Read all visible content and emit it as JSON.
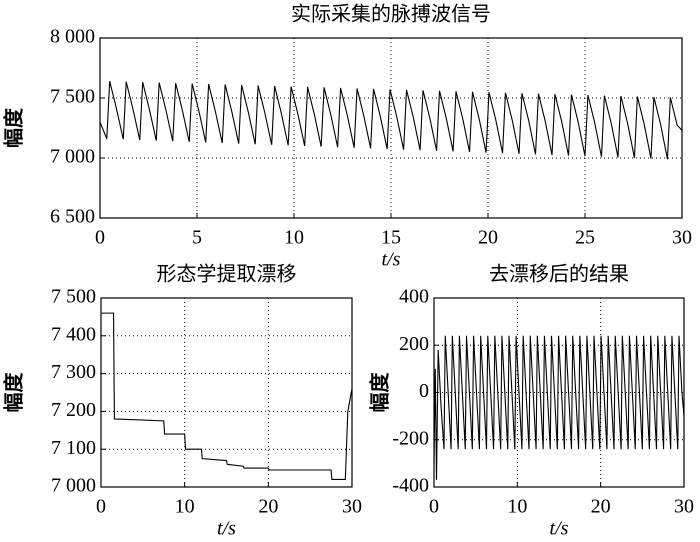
{
  "chart_data": [
    {
      "type": "line",
      "title": "实际采集的脉搏波信号",
      "xlabel": "t/s",
      "ylabel": "幅度",
      "color": "#000000",
      "grid": true,
      "xlim": [
        0,
        30
      ],
      "ylim": [
        6500,
        8000
      ],
      "xticks": [
        0,
        5,
        10,
        15,
        20,
        25,
        30
      ],
      "yticks": [
        {
          "value": 6500,
          "label": "6 500"
        },
        {
          "value": 7000,
          "label": "7 000"
        },
        {
          "value": 7500,
          "label": "7 500"
        },
        {
          "value": 8000,
          "label": "8 000"
        }
      ],
      "x": [
        0,
        0.35,
        0.5,
        0.85,
        1.2,
        1.35,
        1.7,
        2.05,
        2.2,
        2.55,
        2.9,
        3.05,
        3.4,
        3.75,
        3.9,
        4.25,
        4.6,
        4.75,
        5.1,
        5.45,
        5.6,
        5.95,
        6.3,
        6.45,
        6.8,
        7.15,
        7.3,
        7.65,
        8.0,
        8.15,
        8.5,
        8.85,
        9.0,
        9.35,
        9.7,
        9.85,
        10.2,
        10.55,
        10.7,
        11.05,
        11.4,
        11.55,
        11.9,
        12.25,
        12.4,
        12.75,
        13.1,
        13.25,
        13.6,
        13.95,
        14.1,
        14.45,
        14.8,
        14.95,
        15.3,
        15.65,
        15.8,
        16.15,
        16.5,
        16.65,
        17.0,
        17.35,
        17.5,
        17.85,
        18.2,
        18.35,
        18.7,
        19.05,
        19.2,
        19.55,
        19.9,
        20.05,
        20.4,
        20.75,
        20.9,
        21.25,
        21.6,
        21.75,
        22.1,
        22.45,
        22.6,
        22.95,
        23.3,
        23.45,
        23.8,
        24.15,
        24.3,
        24.65,
        25.0,
        25.15,
        25.5,
        25.85,
        26.0,
        26.35,
        26.7,
        26.85,
        27.2,
        27.55,
        27.7,
        28.05,
        28.4,
        28.55,
        28.9,
        29.25,
        29.4,
        29.75,
        30
      ],
      "values": [
        7300,
        7160,
        7640,
        7410,
        7156,
        7636,
        7406,
        7150,
        7632,
        7402,
        7145,
        7628,
        7398,
        7140,
        7624,
        7394,
        7135,
        7620,
        7390,
        7130,
        7616,
        7386,
        7125,
        7612,
        7382,
        7120,
        7608,
        7378,
        7115,
        7604,
        7374,
        7110,
        7600,
        7370,
        7105,
        7596,
        7366,
        7100,
        7592,
        7362,
        7095,
        7588,
        7358,
        7090,
        7584,
        7354,
        7085,
        7580,
        7350,
        7080,
        7576,
        7346,
        7075,
        7572,
        7342,
        7070,
        7568,
        7338,
        7065,
        7564,
        7334,
        7060,
        7560,
        7330,
        7055,
        7556,
        7326,
        7050,
        7552,
        7322,
        7045,
        7548,
        7318,
        7040,
        7544,
        7314,
        7035,
        7540,
        7310,
        7030,
        7536,
        7306,
        7025,
        7532,
        7302,
        7020,
        7528,
        7298,
        7015,
        7524,
        7294,
        7010,
        7520,
        7290,
        7005,
        7516,
        7286,
        7000,
        7512,
        7282,
        6995,
        7508,
        7278,
        6990,
        7504,
        7274,
        7230
      ]
    },
    {
      "type": "line",
      "title": "形态学提取漂移",
      "xlabel": "t/s",
      "ylabel": "幅度",
      "color": "#000000",
      "grid": true,
      "xlim": [
        0,
        30
      ],
      "ylim": [
        7000,
        7500
      ],
      "xticks": [
        0,
        10,
        20,
        30
      ],
      "yticks": [
        {
          "value": 7000,
          "label": "7 000"
        },
        {
          "value": 7100,
          "label": "7 100"
        },
        {
          "value": 7200,
          "label": "7 200"
        },
        {
          "value": 7300,
          "label": "7 300"
        },
        {
          "value": 7400,
          "label": "7 400"
        },
        {
          "value": 7500,
          "label": "7 500"
        }
      ],
      "x": [
        0,
        1.5,
        1.6,
        7.5,
        7.6,
        10,
        10.1,
        12,
        12.1,
        15,
        15.1,
        17,
        17.1,
        20,
        20.1,
        27.5,
        27.6,
        29.2,
        29.5,
        30
      ],
      "values": [
        7460,
        7460,
        7180,
        7175,
        7140,
        7140,
        7100,
        7100,
        7075,
        7070,
        7060,
        7055,
        7050,
        7050,
        7045,
        7045,
        7020,
        7020,
        7200,
        7260
      ]
    },
    {
      "type": "line",
      "title": "去漂移后的结果",
      "xlabel": "t/s",
      "ylabel": "幅度",
      "color": "#000000",
      "grid": true,
      "xlim": [
        0,
        30
      ],
      "ylim": [
        -400,
        400
      ],
      "xticks": [
        0,
        10,
        20,
        30
      ],
      "yticks": [
        -400,
        -200,
        0,
        200,
        400
      ],
      "x": [
        0,
        0.15,
        0.3,
        0.5,
        0.85,
        1.2,
        1.35,
        1.7,
        2.05,
        2.2,
        2.55,
        2.9,
        3.05,
        3.4,
        3.75,
        3.9,
        4.25,
        4.6,
        4.75,
        5.1,
        5.45,
        5.6,
        5.95,
        6.3,
        6.45,
        6.8,
        7.15,
        7.3,
        7.65,
        8.0,
        8.15,
        8.5,
        8.85,
        9.0,
        9.35,
        9.7,
        9.85,
        10.2,
        10.55,
        10.7,
        11.05,
        11.4,
        11.55,
        11.9,
        12.25,
        12.4,
        12.75,
        13.1,
        13.25,
        13.6,
        13.95,
        14.1,
        14.45,
        14.8,
        14.95,
        15.3,
        15.65,
        15.8,
        16.15,
        16.5,
        16.65,
        17.0,
        17.35,
        17.5,
        17.85,
        18.2,
        18.35,
        18.7,
        19.05,
        19.2,
        19.55,
        19.9,
        20.05,
        20.4,
        20.75,
        20.9,
        21.25,
        21.6,
        21.75,
        22.1,
        22.45,
        22.6,
        22.95,
        23.3,
        23.45,
        23.8,
        24.15,
        24.3,
        24.65,
        25.0,
        25.15,
        25.5,
        25.85,
        26.0,
        26.35,
        26.7,
        26.85,
        27.2,
        27.55,
        27.7,
        28.05,
        28.4,
        28.55,
        28.9,
        29.25,
        29.4,
        29.75,
        30
      ],
      "values": [
        -300,
        100,
        -370,
        180,
        -60,
        -240,
        240,
        0,
        -240,
        240,
        0,
        -240,
        240,
        0,
        -240,
        240,
        0,
        -240,
        240,
        0,
        -240,
        240,
        0,
        -240,
        240,
        0,
        -240,
        240,
        0,
        -240,
        240,
        0,
        -240,
        240,
        0,
        -240,
        240,
        0,
        -240,
        240,
        0,
        -240,
        240,
        0,
        -240,
        240,
        0,
        -240,
        240,
        0,
        -240,
        240,
        0,
        -240,
        240,
        0,
        -240,
        240,
        0,
        -240,
        240,
        0,
        -240,
        240,
        0,
        -240,
        240,
        0,
        -240,
        240,
        0,
        -240,
        240,
        0,
        -240,
        240,
        0,
        -240,
        240,
        0,
        -240,
        240,
        0,
        -240,
        240,
        0,
        -240,
        240,
        0,
        -240,
        240,
        0,
        -240,
        240,
        0,
        -240,
        240,
        0,
        -240,
        240,
        0,
        -240,
        240,
        0,
        -240,
        240,
        0,
        -100
      ]
    }
  ]
}
